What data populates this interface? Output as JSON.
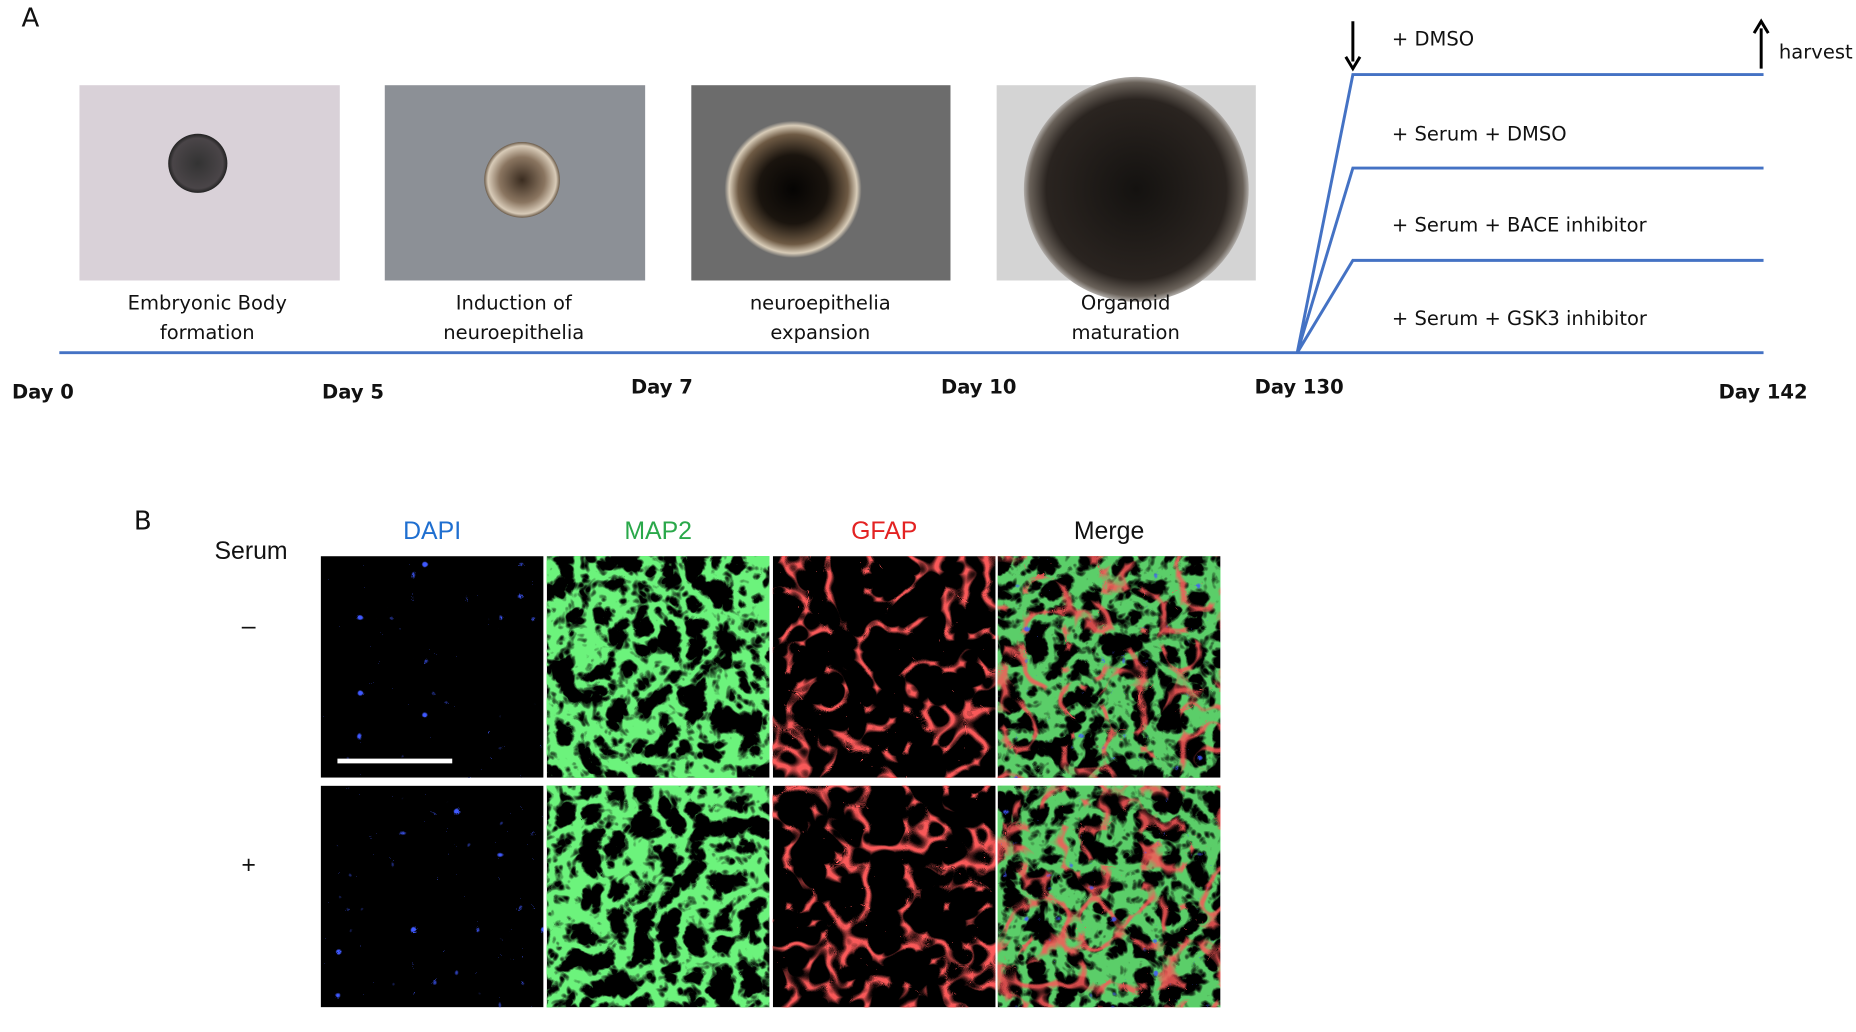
{
  "panel_a": {
    "label": "A",
    "captions": [
      [
        "Embryonic Body",
        "formation"
      ],
      [
        "Induction of",
        "neuroepithelia"
      ],
      [
        "neuroepithelia",
        "expansion"
      ],
      [
        "Organoid",
        "maturation"
      ]
    ],
    "days": [
      "Day 0",
      "Day 5",
      "Day 7",
      "Day 10",
      "Day 130",
      "Day 142"
    ],
    "treatments": [
      "+ DMSO",
      "+ Serum + DMSO",
      "+ Serum + BACE inhibitor",
      "+ Serum + GSK3 inhibitor"
    ],
    "harvest": "harvest"
  },
  "panel_b": {
    "label": "B",
    "columns": [
      "DAPI",
      "MAP2",
      "GFAP",
      "Merge"
    ],
    "row_header": "Serum",
    "rows": [
      "–",
      "+"
    ]
  }
}
